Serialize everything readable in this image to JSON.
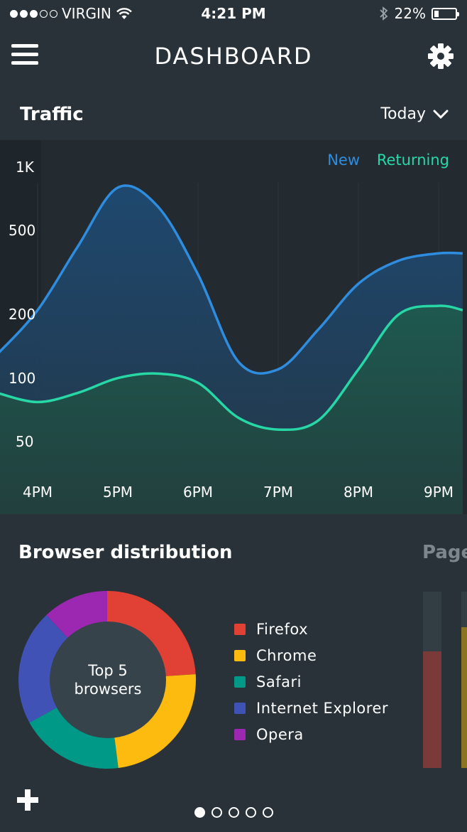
{
  "status_bar": {
    "carrier": "VIRGIN",
    "time": "4:21 PM",
    "battery": "22%",
    "battery_level": 0.22,
    "signal_bars_filled": 3,
    "signal_bars_total": 5
  },
  "header": {
    "title": "DASHBOARD",
    "menu_icon": "hamburger-menu-icon",
    "settings_icon": "gear-icon"
  },
  "traffic": {
    "title": "Traffic",
    "period": "Today",
    "legend": {
      "new": "New",
      "returning": "Returning"
    },
    "colors": {
      "new": "#2f8de0",
      "returning": "#27d8a6"
    }
  },
  "chart_data": {
    "type": "area",
    "title": "Traffic",
    "y_scale": "log",
    "y_ticks": [
      "1K",
      "500",
      "200",
      "100",
      "50"
    ],
    "x_ticks": [
      "4PM",
      "5PM",
      "6PM",
      "7PM",
      "8PM",
      "9PM"
    ],
    "series": [
      {
        "name": "New",
        "color": "#2f8de0",
        "x": [
          3.5,
          4.0,
          4.5,
          5.0,
          5.5,
          6.0,
          6.5,
          7.0,
          7.5,
          8.0,
          8.5,
          9.0,
          9.3
        ],
        "values": [
          130,
          210,
          420,
          800,
          650,
          310,
          120,
          110,
          170,
          280,
          360,
          390,
          390
        ]
      },
      {
        "name": "Returning",
        "color": "#27d8a6",
        "x": [
          3.5,
          4.0,
          4.5,
          5.0,
          5.5,
          6.0,
          6.5,
          7.0,
          7.5,
          8.0,
          8.5,
          9.0,
          9.3
        ],
        "values": [
          85,
          77,
          85,
          100,
          105,
          95,
          65,
          57,
          63,
          110,
          200,
          220,
          210
        ]
      }
    ]
  },
  "browser": {
    "title": "Browser distribution",
    "center_line1": "Top 5",
    "center_line2": "browsers",
    "items": [
      {
        "label": "Firefox",
        "color": "#e04134",
        "share": 0.24
      },
      {
        "label": "Chrome",
        "color": "#fdbb0f",
        "share": 0.24
      },
      {
        "label": "Safari",
        "color": "#009887",
        "share": 0.19
      },
      {
        "label": "Internet Explorer",
        "color": "#4052b5",
        "share": 0.21
      },
      {
        "label": "Opera",
        "color": "#9c27b0",
        "share": 0.12
      }
    ]
  },
  "next_panel": {
    "title": "Pages",
    "bars": [
      {
        "color": "#7a3a38",
        "level": 0.66
      },
      {
        "color": "#8b7420",
        "level": 0.8
      }
    ]
  },
  "pager": {
    "count": 5,
    "active": 0
  },
  "fab_icon": "plus-icon"
}
